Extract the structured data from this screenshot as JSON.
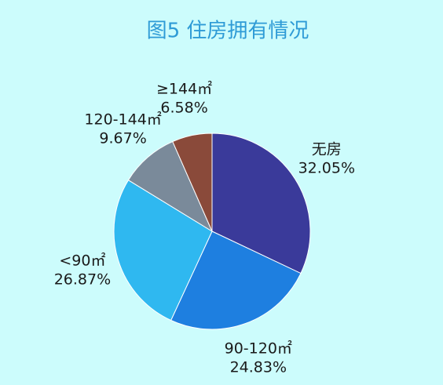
{
  "chart_data": {
    "type": "pie",
    "title": "图5 住房拥有情况",
    "categories": [
      "无房",
      "90-120㎡",
      "<90㎡",
      "120-144㎡",
      "≥144㎡"
    ],
    "values": [
      32.05,
      24.83,
      26.87,
      9.67,
      6.58
    ],
    "value_labels": [
      "32.05%",
      "24.83%",
      "26.87%",
      "9.67%",
      "6.58%"
    ],
    "colors": [
      "#3a3a9a",
      "#1e7fe0",
      "#2fb8f0",
      "#7a8a9a",
      "#8a4a3a"
    ],
    "background": "#ccfcfc"
  }
}
